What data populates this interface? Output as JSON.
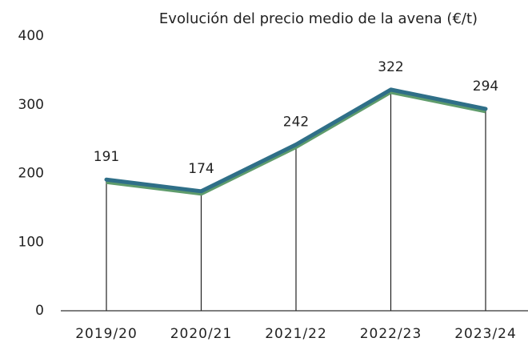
{
  "chart_data": {
    "type": "line",
    "title": "Evolución del precio medio de la avena (€/t)",
    "categories": [
      "2019/20",
      "2020/21",
      "2021/22",
      "2022/23",
      "2023/24"
    ],
    "values": [
      191,
      174,
      242,
      322,
      294
    ],
    "color": "#2f6f88",
    "ylim": [
      0,
      400
    ],
    "yticks": [
      0,
      100,
      200,
      300,
      400
    ]
  }
}
